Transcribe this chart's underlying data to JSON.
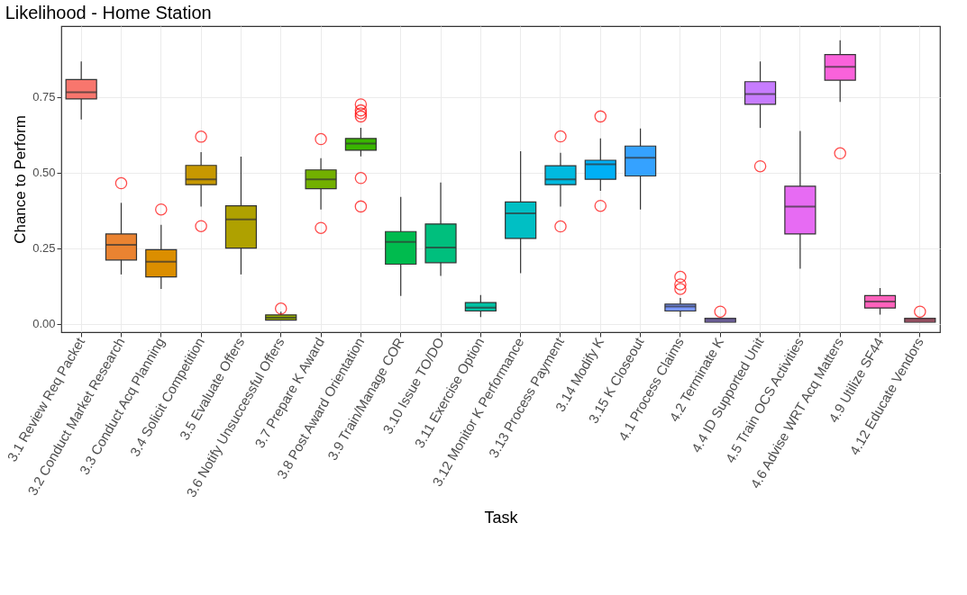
{
  "chart_data": {
    "type": "box",
    "title": "Likelihood - Home Station",
    "xlabel": "Task",
    "ylabel": "Chance to Perform",
    "categories": [
      "3.1 Review Req Packet",
      "3.2 Conduct Market Research",
      "3.3 Conduct Acq Planning",
      "3.4 Solicit Competition",
      "3.5 Evaluate Offers",
      "3.6 Notify Unsuccessful Offers",
      "3.7 Prepare K Award",
      "3.8 Post Award Orientation",
      "3.9 Train/Manage COR",
      "3.10 Issue TO/DO",
      "3.11 Exercise Option",
      "3.12 Monitor K Performance",
      "3.13 Process Payment",
      "3.14 Modify K",
      "3.15 K Closeout",
      "4.1 Process Claims",
      "4.2 Terminate K",
      "4.4 ID Supported Unit",
      "4.5 Train OCS Activities",
      "4.6 Advise WRT Acq Matters",
      "4.9 Utilize SF44",
      "4.12 Educate Vendors"
    ],
    "boxes": [
      {
        "low": 0.676,
        "q1": 0.744,
        "median": 0.766,
        "q3": 0.808,
        "high": 0.868
      },
      {
        "low": 0.163,
        "q1": 0.211,
        "median": 0.261,
        "q3": 0.297,
        "high": 0.4,
        "outliers": [
          0.465
        ]
      },
      {
        "low": 0.115,
        "q1": 0.155,
        "median": 0.205,
        "q3": 0.245,
        "high": 0.327,
        "outliers": [
          0.378
        ]
      },
      {
        "low": 0.388,
        "q1": 0.46,
        "median": 0.478,
        "q3": 0.524,
        "high": 0.568,
        "outliers": [
          0.619,
          0.323
        ]
      },
      {
        "low": 0.163,
        "q1": 0.25,
        "median": 0.345,
        "q3": 0.39,
        "high": 0.553
      },
      {
        "low": 0.012,
        "q1": 0.012,
        "median": 0.02,
        "q3": 0.029,
        "high": 0.04,
        "outliers": [
          0.05
        ]
      },
      {
        "low": 0.378,
        "q1": 0.447,
        "median": 0.478,
        "q3": 0.509,
        "high": 0.548,
        "outliers": [
          0.611,
          0.317
        ]
      },
      {
        "low": 0.554,
        "q1": 0.574,
        "median": 0.596,
        "q3": 0.613,
        "high": 0.648,
        "outliers": [
          0.726,
          0.706,
          0.696,
          0.686,
          0.482,
          0.388
        ]
      },
      {
        "low": 0.092,
        "q1": 0.197,
        "median": 0.271,
        "q3": 0.305,
        "high": 0.42
      },
      {
        "low": 0.158,
        "q1": 0.202,
        "median": 0.252,
        "q3": 0.33,
        "high": 0.467
      },
      {
        "low": 0.022,
        "q1": 0.042,
        "median": 0.053,
        "q3": 0.07,
        "high": 0.095
      },
      {
        "low": 0.167,
        "q1": 0.282,
        "median": 0.365,
        "q3": 0.403,
        "high": 0.571
      },
      {
        "low": 0.388,
        "q1": 0.46,
        "median": 0.478,
        "q3": 0.523,
        "high": 0.566,
        "outliers": [
          0.62,
          0.322
        ]
      },
      {
        "low": 0.44,
        "q1": 0.478,
        "median": 0.528,
        "q3": 0.541,
        "high": 0.613,
        "outliers": [
          0.686,
          0.39
        ]
      },
      {
        "low": 0.378,
        "q1": 0.489,
        "median": 0.549,
        "q3": 0.588,
        "high": 0.646
      },
      {
        "low": 0.023,
        "q1": 0.042,
        "median": 0.057,
        "q3": 0.065,
        "high": 0.085,
        "outliers": [
          0.155,
          0.13,
          0.115
        ]
      },
      {
        "low": 0.005,
        "q1": 0.005,
        "median": 0.012,
        "q3": 0.018,
        "high": 0.02,
        "outliers": [
          0.04
        ]
      },
      {
        "low": 0.648,
        "q1": 0.726,
        "median": 0.76,
        "q3": 0.801,
        "high": 0.868,
        "outliers": [
          0.521
        ]
      },
      {
        "low": 0.182,
        "q1": 0.297,
        "median": 0.388,
        "q3": 0.455,
        "high": 0.638
      },
      {
        "low": 0.734,
        "q1": 0.806,
        "median": 0.85,
        "q3": 0.891,
        "high": 0.938,
        "outliers": [
          0.564
        ]
      },
      {
        "low": 0.03,
        "q1": 0.052,
        "median": 0.073,
        "q3": 0.093,
        "high": 0.118
      },
      {
        "low": 0.005,
        "q1": 0.005,
        "median": 0.012,
        "q3": 0.018,
        "high": 0.018,
        "outliers": [
          0.04
        ]
      }
    ],
    "colors": [
      "#F8766D",
      "#EA8331",
      "#DB8E00",
      "#C79800",
      "#AFA100",
      "#94AA00",
      "#72B000",
      "#39B600",
      "#00BB4E",
      "#00BF7D",
      "#00C1A3",
      "#00BFC4",
      "#00BAE0",
      "#00B0F6",
      "#35A2FF",
      "#7997FF",
      "#A58AFF",
      "#C77CFF",
      "#E76BF3",
      "#FA62DB",
      "#FF62BC",
      "#FF6C91"
    ],
    "ylim": [
      -0.028,
      0.985
    ],
    "yticks": [
      {
        "value": 0,
        "label": "0.00"
      },
      {
        "value": 0.25,
        "label": "0.25"
      },
      {
        "value": 0.5,
        "label": "0.50"
      },
      {
        "value": 0.75,
        "label": "0.75"
      }
    ],
    "grid": true
  }
}
